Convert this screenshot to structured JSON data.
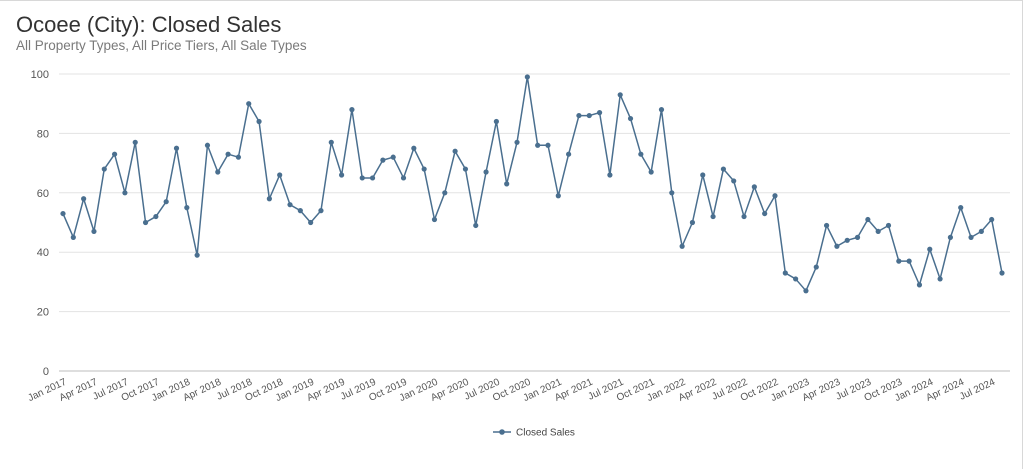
{
  "title": "Ocoee (City): Closed Sales",
  "subtitle": "All Property Types, All Price Tiers, All Sale Types",
  "colors": {
    "line": "#4a6f8f",
    "grid": "#e3e3e3",
    "axis": "#bdbdbd"
  },
  "chart_data": {
    "type": "line",
    "title": "Ocoee (City): Closed Sales",
    "subtitle": "All Property Types, All Price Tiers, All Sale Types",
    "xlabel": "",
    "ylabel": "",
    "ylim": [
      0,
      100
    ],
    "yticks": [
      0,
      20,
      40,
      60,
      80,
      100
    ],
    "grid": true,
    "legend_position": "bottom-center",
    "x_tick_labels": [
      "Jan 2017",
      "Apr 2017",
      "Jul 2017",
      "Oct 2017",
      "Jan 2018",
      "Apr 2018",
      "Jul 2018",
      "Oct 2018",
      "Jan 2019",
      "Apr 2019",
      "Jul 2019",
      "Oct 2019",
      "Jan 2020",
      "Apr 2020",
      "Jul 2020",
      "Oct 2020",
      "Jan 2021",
      "Apr 2021",
      "Jul 2021",
      "Oct 2021",
      "Jan 2022",
      "Apr 2022",
      "Jul 2022",
      "Oct 2022",
      "Jan 2023",
      "Apr 2023",
      "Jul 2023",
      "Oct 2023",
      "Jan 2024",
      "Apr 2024",
      "Jul 2024"
    ],
    "x": [
      "Jan 2017",
      "Feb 2017",
      "Mar 2017",
      "Apr 2017",
      "May 2017",
      "Jun 2017",
      "Jul 2017",
      "Aug 2017",
      "Sep 2017",
      "Oct 2017",
      "Nov 2017",
      "Dec 2017",
      "Jan 2018",
      "Feb 2018",
      "Mar 2018",
      "Apr 2018",
      "May 2018",
      "Jun 2018",
      "Jul 2018",
      "Aug 2018",
      "Sep 2018",
      "Oct 2018",
      "Nov 2018",
      "Dec 2018",
      "Jan 2019",
      "Feb 2019",
      "Mar 2019",
      "Apr 2019",
      "May 2019",
      "Jun 2019",
      "Jul 2019",
      "Aug 2019",
      "Sep 2019",
      "Oct 2019",
      "Nov 2019",
      "Dec 2019",
      "Jan 2020",
      "Feb 2020",
      "Mar 2020",
      "Apr 2020",
      "May 2020",
      "Jun 2020",
      "Jul 2020",
      "Aug 2020",
      "Sep 2020",
      "Oct 2020",
      "Nov 2020",
      "Dec 2020",
      "Jan 2021",
      "Feb 2021",
      "Mar 2021",
      "Apr 2021",
      "May 2021",
      "Jun 2021",
      "Jul 2021",
      "Aug 2021",
      "Sep 2021",
      "Oct 2021",
      "Nov 2021",
      "Dec 2021",
      "Jan 2022",
      "Feb 2022",
      "Mar 2022",
      "Apr 2022",
      "May 2022",
      "Jun 2022",
      "Jul 2022",
      "Aug 2022",
      "Sep 2022",
      "Oct 2022",
      "Nov 2022",
      "Dec 2022",
      "Jan 2023",
      "Feb 2023",
      "Mar 2023",
      "Apr 2023",
      "May 2023",
      "Jun 2023",
      "Jul 2023",
      "Aug 2023",
      "Sep 2023",
      "Oct 2023",
      "Nov 2023",
      "Dec 2023",
      "Jan 2024",
      "Feb 2024",
      "Mar 2024",
      "Apr 2024",
      "May 2024",
      "Jun 2024",
      "Jul 2024",
      "Aug 2024"
    ],
    "series": [
      {
        "name": "Closed Sales",
        "values": [
          53,
          45,
          58,
          47,
          68,
          73,
          60,
          77,
          50,
          52,
          57,
          75,
          55,
          39,
          76,
          67,
          73,
          72,
          90,
          84,
          58,
          66,
          56,
          54,
          50,
          54,
          77,
          66,
          88,
          65,
          65,
          71,
          72,
          65,
          75,
          68,
          51,
          60,
          74,
          68,
          49,
          67,
          84,
          63,
          77,
          99,
          76,
          76,
          59,
          73,
          86,
          86,
          87,
          66,
          93,
          85,
          73,
          67,
          88,
          60,
          42,
          50,
          66,
          52,
          68,
          64,
          52,
          62,
          53,
          59,
          33,
          31,
          27,
          35,
          49,
          42,
          44,
          45,
          51,
          47,
          49,
          37,
          37,
          29,
          41,
          31,
          45,
          55,
          45,
          47,
          51,
          33
        ]
      }
    ]
  }
}
